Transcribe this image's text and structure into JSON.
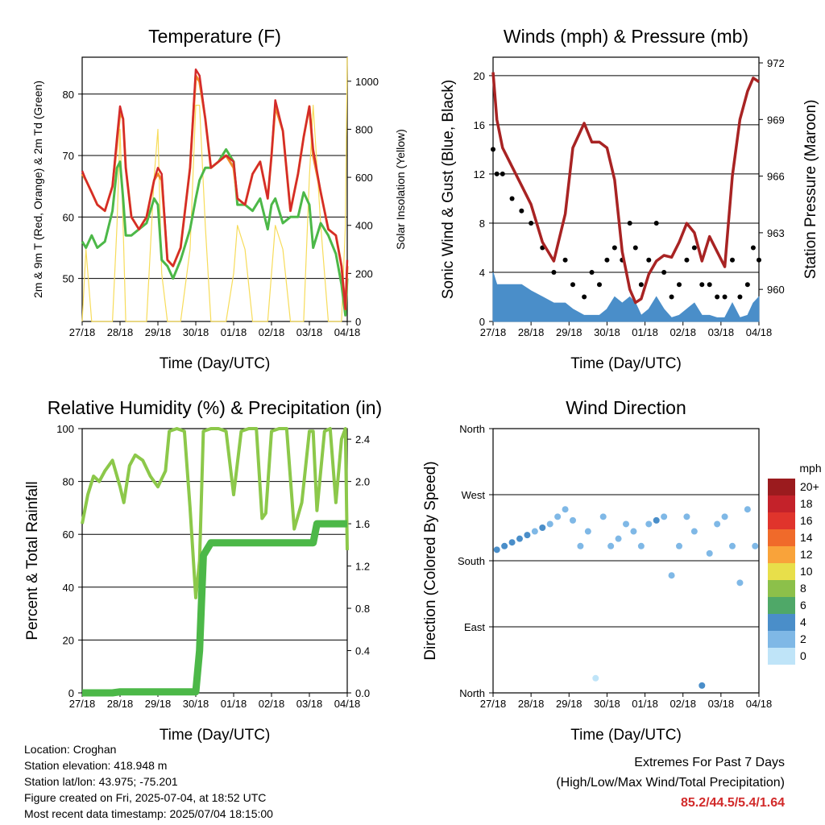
{
  "days": [
    "27/18",
    "28/18",
    "29/18",
    "30/18",
    "01/18",
    "02/18",
    "03/18",
    "04/18"
  ],
  "panels": {
    "temperature": {
      "title": "Temperature (F)",
      "ylabel_left": "2m & 9m T (Red, Orange) & 2m Td (Green)",
      "ylabel_right": "Solar Insolation (Yellow)",
      "xlabel": "Time (Day/UTC)",
      "yticks_left": [
        "50",
        "60",
        "70",
        "80"
      ],
      "yticks_right": [
        "0",
        "200",
        "400",
        "600",
        "800",
        "1000"
      ]
    },
    "winds": {
      "title": "Winds (mph) & Pressure (mb)",
      "ylabel_left": "Sonic Wind & Gust (Blue, Black)",
      "ylabel_right": "Station Pressure (Maroon)",
      "xlabel": "Time (Day/UTC)",
      "yticks_left": [
        "0",
        "4",
        "8",
        "12",
        "16",
        "20"
      ],
      "yticks_right": [
        "960",
        "963",
        "966",
        "969",
        "972"
      ]
    },
    "humidity": {
      "title": "Relative Humidity (%) & Precipitation (in)",
      "ylabel_left": "Percent & Total Rainfall",
      "xlabel": "Time (Day/UTC)",
      "yticks_left": [
        "0",
        "20",
        "40",
        "60",
        "80",
        "100"
      ],
      "yticks_right": [
        "0.0",
        "0.4",
        "0.8",
        "1.2",
        "1.6",
        "2.0",
        "2.4"
      ]
    },
    "direction": {
      "title": "Wind Direction",
      "ylabel_left": "Direction (Colored By Speed)",
      "xlabel": "Time (Day/UTC)",
      "yticks_left": [
        "North",
        "East",
        "South",
        "West",
        "North"
      ],
      "legend_title": "mph",
      "legend_labels": [
        "20+",
        "18",
        "16",
        "14",
        "12",
        "10",
        "8",
        "6",
        "4",
        "2",
        "0"
      ],
      "legend_colors": [
        "#9b1b1e",
        "#c4222a",
        "#e0342c",
        "#f06a2a",
        "#f9a33a",
        "#e8df4a",
        "#8cc04a",
        "#4fa868",
        "#4a8ec9",
        "#7fb8e6",
        "#bfe4f8"
      ]
    }
  },
  "chart_data": [
    {
      "type": "line",
      "title": "Temperature (F)",
      "xlabel": "Time (Day/UTC)",
      "ylabel": "2m & 9m T (Red, Orange) & 2m Td (Green)",
      "y2label": "Solar Insolation (Yellow)",
      "ylim": [
        43,
        86
      ],
      "y2lim": [
        0,
        1100
      ],
      "x": [
        0,
        0.1,
        0.25,
        0.4,
        0.6,
        0.8,
        0.92,
        1.0,
        1.08,
        1.15,
        1.3,
        1.5,
        1.7,
        1.9,
        2.0,
        2.1,
        2.25,
        2.4,
        2.6,
        2.85,
        3.0,
        3.1,
        3.25,
        3.4,
        3.6,
        3.8,
        4.0,
        4.1,
        4.3,
        4.5,
        4.7,
        4.9,
        5.0,
        5.1,
        5.3,
        5.5,
        5.7,
        5.85,
        6.0,
        6.1,
        6.3,
        6.5,
        6.7,
        6.85,
        6.95,
        7.0
      ],
      "series": [
        {
          "name": "2m T",
          "color": "#d42a2a",
          "values": [
            67.5,
            66,
            64,
            62,
            61,
            65,
            73,
            78,
            76,
            68,
            60,
            58,
            60,
            66,
            68,
            67,
            53,
            52,
            55,
            68,
            84,
            83,
            76,
            68,
            69,
            70,
            69,
            63,
            62,
            67,
            69,
            63,
            70,
            79,
            74,
            61,
            67,
            73,
            78,
            71,
            64,
            58,
            57,
            52,
            45,
            53
          ]
        },
        {
          "name": "9m T",
          "color": "#f08a2a",
          "values": [
            67,
            66,
            64,
            62,
            61,
            65,
            72,
            77,
            76,
            68,
            60,
            58,
            60,
            66,
            67,
            66,
            53,
            52,
            55,
            68,
            83,
            82,
            76,
            68,
            69,
            70,
            68,
            63,
            62,
            67,
            69,
            63,
            70,
            78,
            74,
            61,
            67,
            73,
            78,
            70,
            64,
            58,
            57,
            52,
            45,
            52
          ]
        },
        {
          "name": "2m Td",
          "color": "#4cb848",
          "values": [
            56,
            55,
            57,
            55,
            56,
            61,
            68,
            69,
            63,
            57,
            57,
            58,
            59,
            63,
            62,
            53,
            52,
            50,
            53,
            58,
            63,
            66,
            68,
            68,
            69,
            71,
            69,
            62,
            62,
            61,
            63,
            58,
            62,
            63,
            59,
            60,
            60,
            64,
            62,
            55,
            59,
            57,
            54,
            49,
            44,
            50
          ]
        },
        {
          "name": "Solar Insolation",
          "color": "#f7dc5a",
          "values": [
            0,
            300,
            0,
            0,
            0,
            0,
            400,
            800,
            400,
            0,
            0,
            0,
            0,
            600,
            800,
            200,
            0,
            0,
            0,
            300,
            900,
            900,
            400,
            0,
            0,
            0,
            200,
            400,
            300,
            0,
            0,
            0,
            200,
            400,
            300,
            0,
            0,
            0,
            600,
            900,
            400,
            0,
            0,
            0,
            400,
            1100
          ]
        }
      ]
    },
    {
      "type": "line",
      "title": "Winds (mph) & Pressure (mb)",
      "xlabel": "Time (Day/UTC)",
      "ylabel": "Sonic Wind & Gust (Blue, Black)",
      "y2label": "Station Pressure (Maroon)",
      "ylim": [
        0,
        21.5
      ],
      "y2lim": [
        958.3,
        972.3
      ],
      "x": [
        0,
        0.1,
        0.25,
        0.5,
        0.75,
        1.0,
        1.3,
        1.6,
        1.9,
        2.1,
        2.4,
        2.6,
        2.8,
        3.0,
        3.2,
        3.4,
        3.6,
        3.75,
        3.9,
        4.1,
        4.3,
        4.5,
        4.7,
        4.9,
        5.1,
        5.3,
        5.5,
        5.7,
        5.9,
        6.1,
        6.3,
        6.5,
        6.7,
        6.85,
        7.0
      ],
      "series": [
        {
          "name": "Station Pressure",
          "color": "#a82323",
          "values": [
            971.5,
            969,
            967.5,
            966.5,
            965.5,
            964.5,
            962.5,
            961.5,
            964,
            967.5,
            968.8,
            967.8,
            967.8,
            967.5,
            965.8,
            962,
            960,
            959.3,
            959.5,
            960.8,
            961.5,
            961.8,
            961.7,
            962.5,
            963.5,
            963,
            961.5,
            962.8,
            962,
            961.2,
            966,
            969,
            970.5,
            971.2,
            971
          ]
        },
        {
          "name": "Gust",
          "color": "#000000",
          "values": [
            14,
            12,
            12,
            10,
            9,
            8,
            6,
            4,
            5,
            3,
            2,
            4,
            3,
            5,
            6,
            5,
            8,
            6,
            3,
            5,
            8,
            4,
            2,
            3,
            5,
            6,
            3,
            3,
            2,
            2,
            5,
            2,
            3,
            6,
            5
          ]
        },
        {
          "name": "Sonic Wind",
          "color": "#4a8ec9",
          "values": [
            4,
            3,
            3,
            3,
            3,
            2.5,
            2,
            1.5,
            1.5,
            1,
            0.5,
            0.5,
            0.5,
            1,
            2,
            1.5,
            2,
            1.5,
            0.5,
            1,
            2,
            1,
            0.3,
            0.5,
            1,
            1.5,
            0.5,
            0.5,
            0.3,
            0.3,
            1.5,
            0.3,
            0.5,
            1.5,
            2
          ]
        }
      ]
    },
    {
      "type": "line",
      "title": "Relative Humidity (%) & Precipitation (in)",
      "xlabel": "Time (Day/UTC)",
      "ylabel": "Percent & Total Rainfall",
      "ylim": [
        0,
        100
      ],
      "y2lim": [
        0,
        2.5
      ],
      "x": [
        0,
        0.15,
        0.3,
        0.45,
        0.6,
        0.8,
        1.0,
        1.1,
        1.25,
        1.4,
        1.6,
        1.8,
        2.0,
        2.2,
        2.3,
        2.5,
        2.7,
        2.85,
        3.0,
        3.1,
        3.2,
        3.4,
        3.6,
        3.8,
        4.0,
        4.2,
        4.4,
        4.6,
        4.75,
        4.85,
        5.0,
        5.2,
        5.4,
        5.6,
        5.8,
        6.0,
        6.1,
        6.2,
        6.4,
        6.55,
        6.7,
        6.85,
        6.95,
        7.0
      ],
      "series": [
        {
          "name": "Relative Humidity",
          "color": "#8cc84a",
          "values": [
            64,
            75,
            82,
            80,
            84,
            88,
            78,
            72,
            86,
            90,
            88,
            82,
            78,
            84,
            99,
            100,
            99,
            70,
            36,
            50,
            99,
            100,
            100,
            99,
            75,
            99,
            100,
            100,
            66,
            68,
            99,
            100,
            100,
            62,
            72,
            99,
            99,
            69,
            99,
            100,
            72,
            96,
            100,
            54
          ]
        },
        {
          "name": "Total Precipitation",
          "color": "#4cb848",
          "values": [
            0,
            0,
            0,
            0,
            0,
            0,
            0.01,
            0.01,
            0.01,
            0.01,
            0.01,
            0.01,
            0.01,
            0.01,
            0.01,
            0.01,
            0.01,
            0.01,
            0.01,
            0.4,
            1.3,
            1.42,
            1.42,
            1.42,
            1.42,
            1.42,
            1.42,
            1.42,
            1.42,
            1.42,
            1.42,
            1.42,
            1.42,
            1.42,
            1.42,
            1.42,
            1.42,
            1.6,
            1.6,
            1.6,
            1.6,
            1.6,
            1.6,
            1.6
          ]
        }
      ]
    },
    {
      "type": "scatter",
      "title": "Wind Direction",
      "xlabel": "Time (Day/UTC)",
      "ylabel": "Direction (Colored By Speed)",
      "ylim": [
        0,
        360
      ],
      "categories_y": [
        "North",
        "East",
        "South",
        "West",
        "North"
      ],
      "x": [
        0.1,
        0.3,
        0.5,
        0.7,
        0.9,
        1.1,
        1.3,
        1.5,
        1.7,
        1.9,
        2.1,
        2.3,
        2.5,
        2.7,
        2.9,
        3.1,
        3.3,
        3.5,
        3.7,
        3.9,
        4.1,
        4.3,
        4.5,
        4.7,
        4.9,
        5.1,
        5.3,
        5.5,
        5.7,
        5.9,
        6.1,
        6.3,
        6.5,
        6.7,
        6.9
      ],
      "series": [
        {
          "name": "Direction",
          "values": [
            195,
            200,
            205,
            210,
            215,
            220,
            225,
            230,
            240,
            250,
            235,
            200,
            220,
            20,
            240,
            200,
            210,
            230,
            220,
            200,
            230,
            235,
            240,
            160,
            200,
            240,
            220,
            10,
            190,
            230,
            240,
            200,
            150,
            250,
            200
          ],
          "speed": [
            3,
            4,
            4,
            3,
            3,
            2,
            3,
            2,
            1,
            1,
            1,
            2,
            2,
            0,
            1,
            2,
            2,
            2,
            2,
            1,
            2,
            3,
            2,
            1,
            1,
            2,
            2,
            3,
            1,
            2,
            2,
            1,
            1,
            2,
            2
          ]
        }
      ]
    }
  ],
  "info": {
    "location": "Location: Croghan",
    "elevation": "Station elevation: 418.948 m",
    "latlon": "Station lat/lon: 43.975; -75.201",
    "created": "Figure created on Fri, 2025-07-04, at 18:52 UTC",
    "recent": "Most recent data timestamp: 2025/07/04 18:15:00"
  },
  "extremes": {
    "title": "Extremes For Past 7 Days",
    "subtitle": "(High/Low/Max Wind/Total Precipitation)",
    "values": "85.2/44.5/5.4/1.64"
  }
}
